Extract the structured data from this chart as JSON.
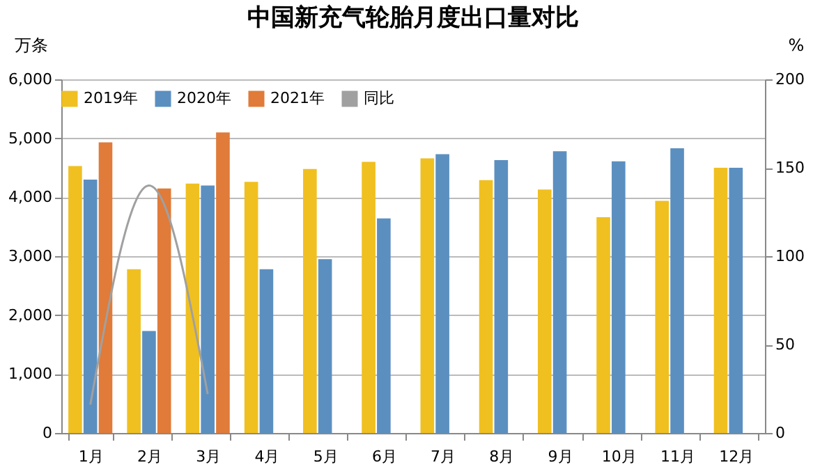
{
  "chart_data": {
    "type": "bar",
    "title": "中国新充气轮胎月度出口量对比",
    "ylabel": "万条",
    "y2label": "%",
    "categories": [
      "1月",
      "2月",
      "3月",
      "4月",
      "5月",
      "6月",
      "7月",
      "8月",
      "9月",
      "10月",
      "11月",
      "12月"
    ],
    "series": [
      {
        "name": "2019年",
        "color": "#f0c020",
        "values": [
          4530,
          2780,
          4230,
          4260,
          4480,
          4600,
          4660,
          4290,
          4130,
          3660,
          3940,
          4500
        ]
      },
      {
        "name": "2020年",
        "color": "#5b8fc0",
        "values": [
          4300,
          1730,
          4200,
          2780,
          2950,
          3640,
          4730,
          4630,
          4780,
          4610,
          4830,
          4500
        ]
      },
      {
        "name": "2021年",
        "color": "#e07b39",
        "values": [
          4930,
          4150,
          5100,
          null,
          null,
          null,
          null,
          null,
          null,
          null,
          null,
          null
        ]
      },
      {
        "name": "同比",
        "type": "line",
        "axis": "y2",
        "color": "#a0a0a0",
        "values": [
          16,
          140,
          22,
          null,
          null,
          null,
          null,
          null,
          null,
          null,
          null,
          null
        ]
      }
    ],
    "ylim": [
      0,
      6000
    ],
    "yticks": [
      {
        "value": 0,
        "label": "0"
      },
      {
        "value": 1000,
        "label": "1,000"
      },
      {
        "value": 2000,
        "label": "2,000"
      },
      {
        "value": 3000,
        "label": "3,000"
      },
      {
        "value": 4000,
        "label": "4,000"
      },
      {
        "value": 5000,
        "label": "5,000"
      },
      {
        "value": 6000,
        "label": "6,000"
      }
    ],
    "y2lim": [
      0,
      200
    ],
    "y2ticks": [
      0,
      50,
      100,
      150,
      200
    ],
    "grid": "y",
    "legend": "top"
  }
}
